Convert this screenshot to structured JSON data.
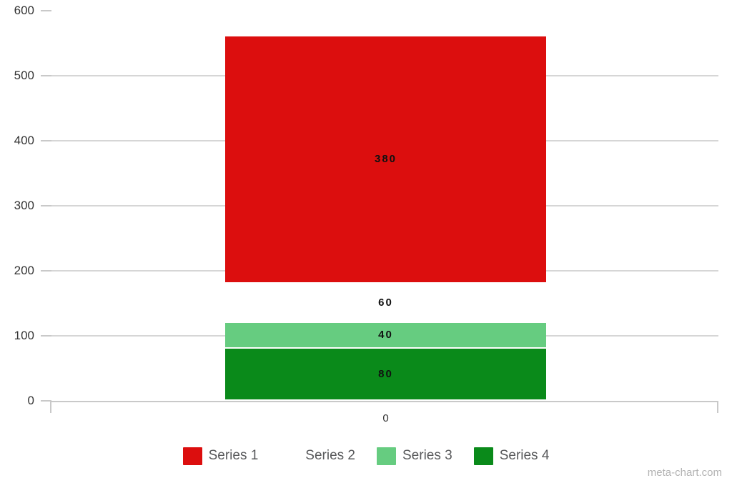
{
  "watermark": "meta-chart.com",
  "chart_data": {
    "type": "bar",
    "stacked": true,
    "orientation": "vertical",
    "title": "",
    "xlabel": "",
    "ylabel": "",
    "categories": [
      "0"
    ],
    "series": [
      {
        "name": "Series 1",
        "color": "#dc0e0e",
        "values": [
          380
        ]
      },
      {
        "name": "Series 2",
        "color": "#ffffff",
        "values": [
          60
        ]
      },
      {
        "name": "Series 3",
        "color": "#66cc80",
        "values": [
          40
        ]
      },
      {
        "name": "Series 4",
        "color": "#0a8a1a",
        "values": [
          80
        ]
      }
    ],
    "stack_order_bottom_to_top": [
      "Series 4",
      "Series 3",
      "Series 2",
      "Series 1"
    ],
    "data_labels": {
      "Series 1": "380",
      "Series 2": "60",
      "Series 3": "40",
      "Series 4": "80"
    },
    "y_ticks": [
      0,
      100,
      200,
      300,
      400,
      500,
      600
    ],
    "ylim": [
      0,
      600
    ],
    "grid": true,
    "legend_position": "bottom",
    "legend_entries": [
      "Series 1",
      "Series 2",
      "Series 3",
      "Series 4"
    ],
    "colors": {
      "axis": "#c9c9c9",
      "grid": "#d6d6d6",
      "tick_label": "#333333",
      "data_label": "#111111",
      "legend_text": "#58595b",
      "watermark": "#b3b3b3"
    }
  }
}
